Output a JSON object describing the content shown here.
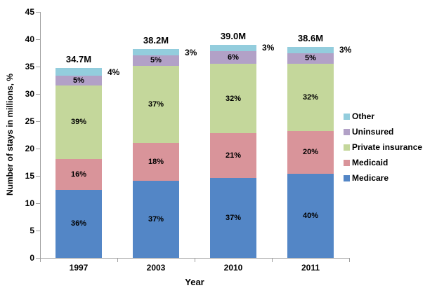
{
  "chart": {
    "y_axis_title": "Number of stays  in millions, %",
    "x_axis_title": "Year"
  },
  "chart_data": {
    "type": "bar",
    "stacked": true,
    "title": "",
    "xlabel": "Year",
    "ylabel": "Number of stays in millions, %",
    "categories": [
      "1997",
      "2003",
      "2010",
      "2011"
    ],
    "totals": [
      34.7,
      38.2,
      39.0,
      38.6
    ],
    "total_labels": [
      "34.7M",
      "38.2M",
      "39.0M",
      "38.6M"
    ],
    "series": [
      {
        "name": "Medicare",
        "color": "#5386c6",
        "percentages": [
          36,
          37,
          37,
          40
        ]
      },
      {
        "name": "Medicaid",
        "color": "#d9949a",
        "percentages": [
          16,
          18,
          21,
          20
        ]
      },
      {
        "name": "Private insurance",
        "color": "#c4d79b",
        "percentages": [
          39,
          37,
          32,
          32
        ]
      },
      {
        "name": "Uninsured",
        "color": "#b2a1c7",
        "percentages": [
          5,
          5,
          6,
          5
        ]
      },
      {
        "name": "Other",
        "color": "#93cddd",
        "percentages": [
          4,
          3,
          3,
          3
        ]
      }
    ],
    "segment_label_format": "{pct}%",
    "legend": [
      "Other",
      "Uninsured",
      "Private insurance",
      "Medicaid",
      "Medicare"
    ],
    "legend_position": "right",
    "ylim": [
      0,
      45
    ],
    "y_ticks": [
      0,
      5,
      10,
      15,
      20,
      25,
      30,
      35,
      40,
      45
    ],
    "grid": false,
    "axis_color": "#a0a0a0"
  }
}
